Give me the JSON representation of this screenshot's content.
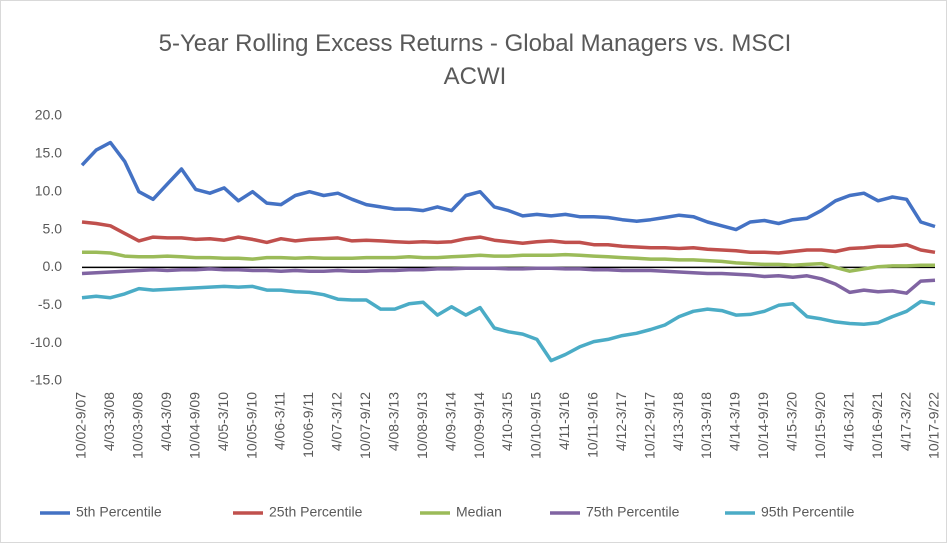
{
  "chart_data": {
    "type": "line",
    "title": "5-Year Rolling Excess Returns - Global Managers vs. MSCI ACWI",
    "categories": [
      "10/02-9/07",
      null,
      "4/03-3/08",
      null,
      "10/03-9/08",
      null,
      "4/04-3/09",
      null,
      "10/04-9/09",
      null,
      "4/05-3/10",
      null,
      "10/05-9/10",
      null,
      "4/06-3/11",
      null,
      "10/06-9/11",
      null,
      "4/07-3/12",
      null,
      "10/07-9/12",
      null,
      "4/08-3/13",
      null,
      "10/08-9/13",
      null,
      "4/09-3/14",
      null,
      "10/09-9/14",
      null,
      "4/10-3/15",
      null,
      "10/10-9/15",
      null,
      "4/11-3/16",
      null,
      "10/11-9/16",
      null,
      "4/12-3/17",
      null,
      "10/12-9/17",
      null,
      "4/13-3/18",
      null,
      "10/13-9/18",
      null,
      "4/14-3/19",
      null,
      "10/14-9/19",
      null,
      "4/15-3/20",
      null,
      "10/15-9/20",
      null,
      "4/16-3/21",
      null,
      "10/16-9/21",
      null,
      "4/17-3/22",
      null,
      "10/17-9/22"
    ],
    "series": [
      {
        "name": "5th Percentile",
        "color": "#4472c4",
        "values": [
          13.5,
          15.5,
          16.5,
          14,
          10,
          9,
          11,
          13,
          10.3,
          9.8,
          10.5,
          8.8,
          10,
          8.5,
          8.3,
          9.5,
          10,
          9.5,
          9.8,
          9,
          8.3,
          8,
          7.7,
          7.7,
          7.5,
          8,
          7.5,
          9.5,
          10,
          8,
          7.5,
          6.8,
          7,
          6.8,
          7,
          6.7,
          6.7,
          6.6,
          6.3,
          6.1,
          6.3,
          6.6,
          6.9,
          6.7,
          6,
          5.5,
          5,
          6,
          6.2,
          5.8,
          6.3,
          6.5,
          7.5,
          8.8,
          9.5,
          9.8,
          8.8,
          9.3,
          9,
          6,
          5.4
        ]
      },
      {
        "name": "25th Percentile",
        "color": "#c0504d",
        "values": [
          6,
          5.8,
          5.5,
          4.5,
          3.5,
          4,
          3.9,
          3.9,
          3.7,
          3.8,
          3.6,
          4,
          3.7,
          3.3,
          3.8,
          3.5,
          3.7,
          3.8,
          3.9,
          3.5,
          3.6,
          3.5,
          3.4,
          3.3,
          3.4,
          3.3,
          3.4,
          3.8,
          4,
          3.6,
          3.4,
          3.2,
          3.4,
          3.5,
          3.3,
          3.3,
          3,
          3,
          2.8,
          2.7,
          2.6,
          2.6,
          2.5,
          2.6,
          2.4,
          2.3,
          2.2,
          2,
          2,
          1.9,
          2.1,
          2.3,
          2.3,
          2.1,
          2.5,
          2.6,
          2.8,
          2.8,
          3,
          2.3,
          2
        ]
      },
      {
        "name": "Median",
        "color": "#9bbb59",
        "values": [
          2,
          2,
          1.9,
          1.5,
          1.4,
          1.4,
          1.5,
          1.4,
          1.3,
          1.3,
          1.2,
          1.2,
          1.1,
          1.3,
          1.3,
          1.2,
          1.3,
          1.2,
          1.2,
          1.2,
          1.3,
          1.3,
          1.3,
          1.4,
          1.3,
          1.3,
          1.4,
          1.5,
          1.6,
          1.5,
          1.5,
          1.6,
          1.6,
          1.6,
          1.7,
          1.6,
          1.5,
          1.4,
          1.3,
          1.2,
          1.1,
          1.1,
          1,
          1,
          0.9,
          0.8,
          0.6,
          0.5,
          0.4,
          0.4,
          0.3,
          0.4,
          0.5,
          0,
          -0.5,
          -0.2,
          0.1,
          0.2,
          0.2,
          0.3,
          0.3
        ]
      },
      {
        "name": "75th Percentile",
        "color": "#8064a2",
        "values": [
          -0.8,
          -0.7,
          -0.6,
          -0.5,
          -0.4,
          -0.3,
          -0.4,
          -0.3,
          -0.3,
          -0.2,
          -0.3,
          -0.3,
          -0.4,
          -0.4,
          -0.5,
          -0.4,
          -0.5,
          -0.5,
          -0.4,
          -0.5,
          -0.5,
          -0.4,
          -0.4,
          -0.3,
          -0.3,
          -0.2,
          -0.2,
          -0.1,
          -0.1,
          -0.1,
          -0.2,
          -0.2,
          -0.1,
          -0.1,
          -0.2,
          -0.2,
          -0.3,
          -0.3,
          -0.4,
          -0.4,
          -0.4,
          -0.5,
          -0.6,
          -0.7,
          -0.8,
          -0.8,
          -0.9,
          -1,
          -1.2,
          -1.1,
          -1.3,
          -1.1,
          -1.5,
          -2.2,
          -3.3,
          -3,
          -3.2,
          -3.1,
          -3.4,
          -1.8,
          -1.7
        ]
      },
      {
        "name": "95th Percentile",
        "color": "#4bacc6",
        "values": [
          -4,
          -3.8,
          -4,
          -3.5,
          -2.8,
          -3,
          -2.9,
          -2.8,
          -2.7,
          -2.6,
          -2.5,
          -2.6,
          -2.5,
          -3,
          -3,
          -3.2,
          -3.3,
          -3.6,
          -4.2,
          -4.3,
          -4.3,
          -5.5,
          -5.5,
          -4.8,
          -4.6,
          -6.3,
          -5.2,
          -6.3,
          -5.3,
          -8,
          -8.5,
          -8.8,
          -9.5,
          -12.3,
          -11.5,
          -10.5,
          -9.8,
          -9.5,
          -9,
          -8.7,
          -8.2,
          -7.6,
          -6.5,
          -5.8,
          -5.5,
          -5.7,
          -6.3,
          -6.2,
          -5.8,
          -5,
          -4.8,
          -6.5,
          -6.8,
          -7.2,
          -7.4,
          -7.5,
          -7.3,
          -6.5,
          -5.8,
          -4.5,
          -4.8
        ]
      }
    ],
    "ylim": [
      -15,
      20
    ],
    "yticks": [
      {
        "value": -15,
        "label": "-15.0"
      },
      {
        "value": -10,
        "label": "-10.0"
      },
      {
        "value": -5,
        "label": "-5.0"
      },
      {
        "value": 0,
        "label": "0.0"
      },
      {
        "value": 5,
        "label": "5.0"
      },
      {
        "value": 10,
        "label": "10.0"
      },
      {
        "value": 15,
        "label": "15.0"
      },
      {
        "value": 20,
        "label": "20.0"
      }
    ],
    "grid": false,
    "legend": "bottom"
  }
}
